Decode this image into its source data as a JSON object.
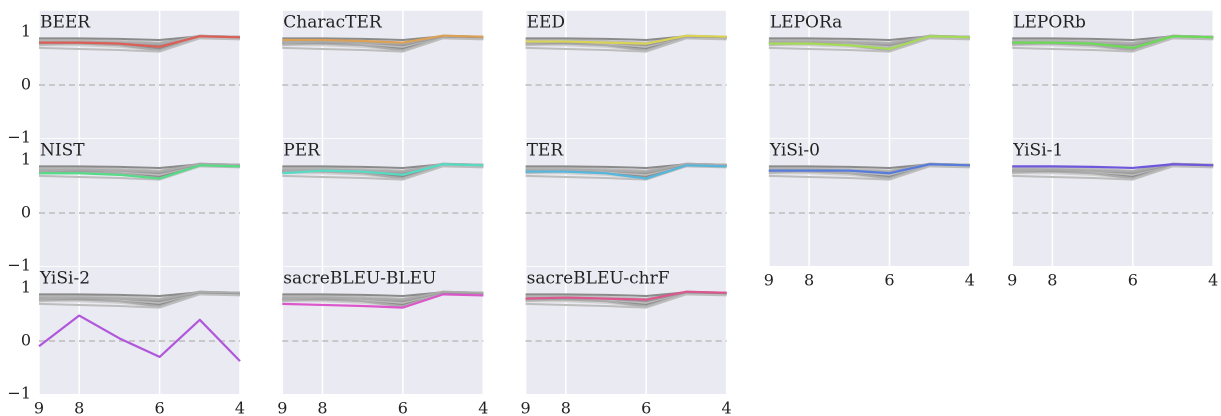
{
  "chart_data": {
    "type": "line",
    "x": [
      9,
      8,
      7,
      6,
      5,
      4
    ],
    "xlim": [
      9,
      4
    ],
    "xticks": [
      9,
      8,
      6,
      4
    ],
    "ylim": [
      -1,
      1.4
    ],
    "yticks": [
      1,
      0,
      {
        "value": -1,
        "label": "−1"
      }
    ],
    "grid": true,
    "zero_line": true,
    "series": [
      {
        "name": "BEER",
        "color": "#db5f57",
        "values": [
          0.8,
          0.8,
          0.78,
          0.72,
          0.92,
          0.9
        ]
      },
      {
        "name": "CharacTER",
        "color": "#dba157",
        "values": [
          0.85,
          0.85,
          0.83,
          0.8,
          0.93,
          0.91
        ]
      },
      {
        "name": "EED",
        "color": "#d9d357",
        "values": [
          0.82,
          0.82,
          0.8,
          0.78,
          0.93,
          0.91
        ]
      },
      {
        "name": "LEPORa",
        "color": "#a5db57",
        "values": [
          0.78,
          0.78,
          0.75,
          0.68,
          0.92,
          0.9
        ]
      },
      {
        "name": "LEPORb",
        "color": "#6bdb57",
        "values": [
          0.8,
          0.8,
          0.78,
          0.7,
          0.92,
          0.9
        ]
      },
      {
        "name": "NIST",
        "color": "#57db89",
        "values": [
          0.75,
          0.75,
          0.72,
          0.65,
          0.9,
          0.88
        ]
      },
      {
        "name": "PER",
        "color": "#57dbc4",
        "values": [
          0.75,
          0.8,
          0.78,
          0.72,
          0.92,
          0.9
        ]
      },
      {
        "name": "TER",
        "color": "#57b6db",
        "values": [
          0.78,
          0.78,
          0.75,
          0.65,
          0.9,
          0.88
        ]
      },
      {
        "name": "YiSi-0",
        "color": "#577bdb",
        "values": [
          0.8,
          0.8,
          0.8,
          0.75,
          0.92,
          0.9
        ]
      },
      {
        "name": "YiSi-1",
        "color": "#6e57db",
        "values": [
          0.88,
          0.88,
          0.87,
          0.85,
          0.92,
          0.9
        ]
      },
      {
        "name": "YiSi-2",
        "color": "#b057db",
        "values": [
          -0.1,
          0.48,
          0.05,
          -0.3,
          0.4,
          -0.38
        ]
      },
      {
        "name": "sacreBLEU-BLEU",
        "color": "#db57ca",
        "values": [
          0.7,
          0.68,
          0.66,
          0.63,
          0.88,
          0.86
        ]
      },
      {
        "name": "sacreBLEU-chrF",
        "color": "#db578e",
        "values": [
          0.8,
          0.82,
          0.8,
          0.78,
          0.93,
          0.91
        ]
      }
    ]
  }
}
